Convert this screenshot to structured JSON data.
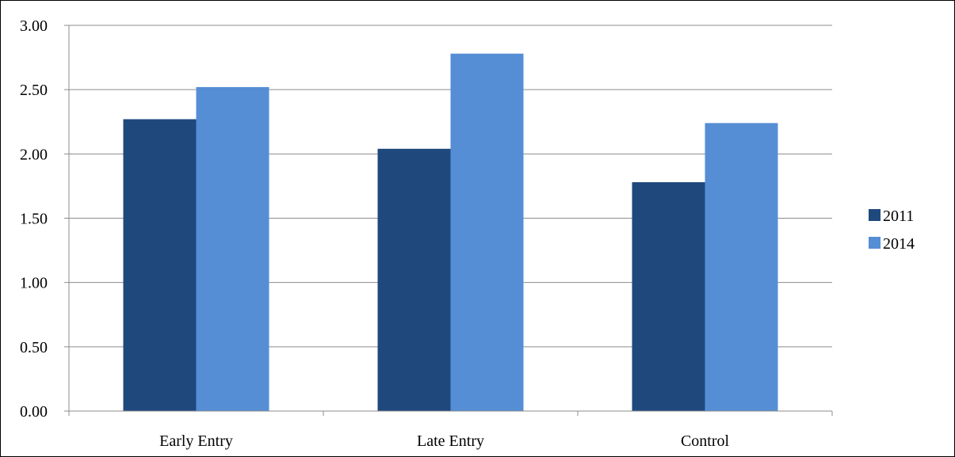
{
  "chart_data": {
    "type": "bar",
    "title": "",
    "xlabel": "",
    "ylabel": "",
    "categories": [
      "Early Entry",
      "Late Entry",
      "Control"
    ],
    "series": [
      {
        "name": "2011",
        "values": [
          2.27,
          2.04,
          1.78
        ],
        "color": "#1F497D"
      },
      {
        "name": "2014",
        "values": [
          2.52,
          2.78,
          2.24
        ],
        "color": "#558ED5"
      }
    ],
    "ylim": [
      0,
      3
    ],
    "yticks": [
      "0.00",
      "0.50",
      "1.00",
      "1.50",
      "2.00",
      "2.50",
      "3.00"
    ],
    "grid": true,
    "legend_position": "right"
  }
}
